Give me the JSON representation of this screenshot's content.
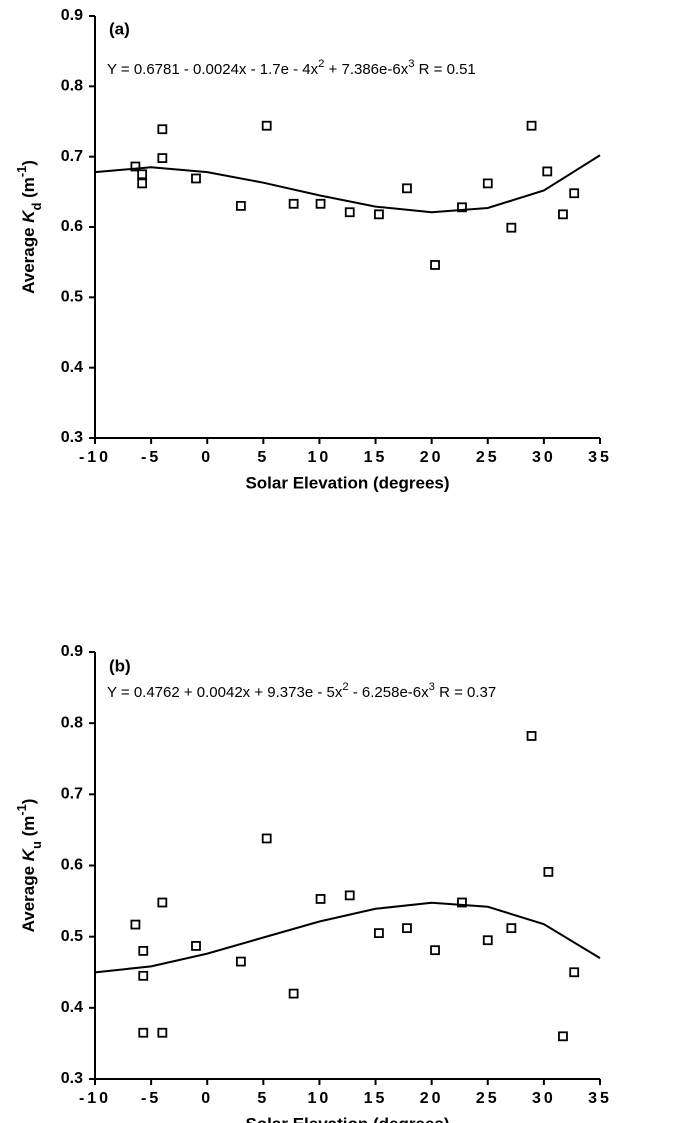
{
  "chart_data": [
    {
      "type": "scatter",
      "panel": "(a)",
      "equation": [
        "Y = 0.6781 - 0.0024x - 1.7e - 4x",
        "2",
        " + 7.386e-6x",
        "3",
        "   R = 0.51"
      ],
      "xlabel": "Solar Elevation (degrees)",
      "ylabel": [
        "Average ",
        "K",
        "d",
        " (m",
        "-1",
        ")"
      ],
      "xlim": [
        -10,
        35
      ],
      "ylim": [
        0.3,
        0.9
      ],
      "xticks": [
        -10,
        -5,
        0,
        5,
        10,
        15,
        20,
        25,
        30,
        35
      ],
      "yticks": [
        0.3,
        0.4,
        0.5,
        0.6,
        0.7,
        0.8,
        0.9
      ],
      "series": [
        {
          "type": "scatter",
          "color": "#000000",
          "x": [
            -6.4,
            -5.8,
            -5.8,
            -4,
            -4,
            -1,
            3,
            5.3,
            7.7,
            10.1,
            12.7,
            15.3,
            17.8,
            20.3,
            22.7,
            25,
            27.1,
            28.9,
            30.3,
            31.7,
            32.7
          ],
          "values": [
            0.686,
            0.675,
            0.662,
            0.739,
            0.698,
            0.669,
            0.63,
            0.744,
            0.633,
            0.633,
            0.621,
            0.618,
            0.655,
            0.546,
            0.628,
            0.662,
            0.599,
            0.744,
            0.679,
            0.618,
            0.648
          ]
        },
        {
          "type": "line",
          "color": "#000000",
          "x": [
            -10,
            -5,
            0,
            5,
            10,
            15,
            20,
            25,
            30,
            35
          ],
          "values": [
            0.678,
            0.685,
            0.678,
            0.663,
            0.645,
            0.629,
            0.621,
            0.627,
            0.652,
            0.702
          ]
        }
      ]
    },
    {
      "type": "scatter",
      "panel": "(b)",
      "equation": [
        "Y = 0.4762 + 0.0042x + 9.373e - 5x",
        "2",
        " - 6.258e-6x",
        "3",
        "   R = 0.37"
      ],
      "xlabel": "Solar Elevation (degrees)",
      "ylabel": [
        "Average ",
        "K",
        "u",
        " (m",
        "-1",
        ")"
      ],
      "xlim": [
        -10,
        35
      ],
      "ylim": [
        0.3,
        0.9
      ],
      "xticks": [
        -10,
        -5,
        0,
        5,
        10,
        15,
        20,
        25,
        30,
        35
      ],
      "yticks": [
        0.3,
        0.4,
        0.5,
        0.6,
        0.7,
        0.8,
        0.9
      ],
      "series": [
        {
          "type": "scatter",
          "color": "#000000",
          "x": [
            -6.4,
            -5.7,
            -5.7,
            -5.7,
            -4,
            -4,
            -1,
            3,
            5.3,
            7.7,
            10.1,
            12.7,
            15.3,
            17.8,
            20.3,
            22.7,
            25,
            27.1,
            28.9,
            30.4,
            31.7,
            32.7
          ],
          "values": [
            0.517,
            0.48,
            0.445,
            0.365,
            0.548,
            0.365,
            0.487,
            0.465,
            0.638,
            0.42,
            0.553,
            0.558,
            0.505,
            0.512,
            0.481,
            0.548,
            0.495,
            0.512,
            0.782,
            0.591,
            0.36,
            0.45
          ]
        },
        {
          "type": "line",
          "color": "#000000",
          "x": [
            -10,
            -5,
            0,
            5,
            10,
            15,
            20,
            25,
            30,
            35
          ],
          "values": [
            0.4498,
            0.4583,
            0.4762,
            0.4988,
            0.5213,
            0.5392,
            0.5476,
            0.542,
            0.5176,
            0.4698
          ]
        }
      ]
    }
  ]
}
